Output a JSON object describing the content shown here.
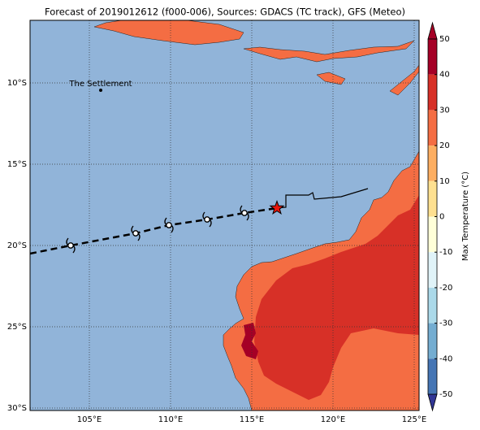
{
  "map": {
    "title": "Forecast of 2019012612 (f000-006), Sources: GDACS (TC track), GFS (Meteo)",
    "lon_range": [
      101.35,
      125.3
    ],
    "lat_range": [
      -6.15,
      -30.15
    ],
    "lon_ticks": [
      {
        "value": 105,
        "label": "105°E"
      },
      {
        "value": 110,
        "label": "110°E"
      },
      {
        "value": 115,
        "label": "115°E"
      },
      {
        "value": 120,
        "label": "120°E"
      },
      {
        "value": 125,
        "label": "125°E"
      }
    ],
    "lat_ticks": [
      {
        "value": -10,
        "label": "10°S"
      },
      {
        "value": -15,
        "label": "15°S"
      },
      {
        "value": -20,
        "label": "20°S"
      },
      {
        "value": -25,
        "label": "25°S"
      },
      {
        "value": -30,
        "label": "30°S"
      }
    ],
    "ocean_color": "#91b4d9",
    "place": {
      "name": "The Settlement",
      "lon": 105.7,
      "lat": -10.45
    },
    "track": {
      "lon": [
        101.35,
        103.85,
        107.85,
        109.9,
        112.25,
        114.55,
        116.55
      ],
      "lat": [
        -20.5,
        -20.0,
        -19.25,
        -18.75,
        -18.4,
        -18.0,
        -17.7
      ]
    },
    "past_positions": {
      "lon": [
        103.85,
        107.85,
        109.9,
        112.25,
        114.55
      ],
      "lat": [
        -20.0,
        -19.25,
        -18.75,
        -18.4,
        -18.0
      ]
    },
    "current_position": {
      "lon": 116.55,
      "lat": -17.7,
      "color": "#e8160c"
    },
    "forecast_track": {
      "lon": [
        116.55,
        117.1,
        117.1,
        118.5,
        118.75,
        118.85,
        120.5,
        122.15
      ],
      "lat": [
        -17.7,
        -17.65,
        -16.9,
        -16.9,
        -16.75,
        -17.15,
        -17.0,
        -16.5
      ]
    },
    "colorbar": {
      "label": "Max Temperature (°C)",
      "ticks": [
        50,
        40,
        30,
        20,
        10,
        0,
        -10,
        -20,
        -30,
        -40,
        -50
      ],
      "colors": [
        "#a50026",
        "#d73027",
        "#f46d43",
        "#fdae61",
        "#fee090",
        "#ffffd8",
        "#e0f3f8",
        "#abd9e9",
        "#74add1",
        "#4575b4",
        "#313695"
      ]
    }
  }
}
